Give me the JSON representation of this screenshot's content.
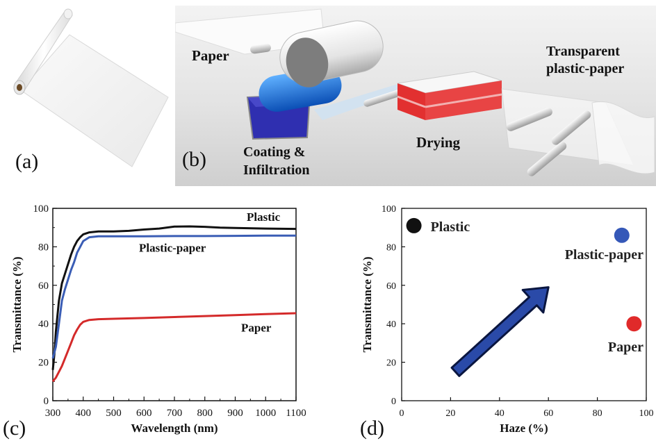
{
  "panel_a": {
    "label": "(a)"
  },
  "panel_b": {
    "label": "(b)",
    "paper": "Paper",
    "coating_line1": "Coating &",
    "coating_line2": "Infiltration",
    "drying": "Drying",
    "output_line1": "Transparent",
    "output_line2": "plastic-paper"
  },
  "chart_data": [
    {
      "panel_label": "(c)",
      "type": "line",
      "xlabel": "Wavelength (nm)",
      "ylabel": "Transmittance (%)",
      "xlim": [
        300,
        1100
      ],
      "ylim": [
        0,
        100
      ],
      "xticks": [
        300,
        400,
        500,
        600,
        700,
        800,
        900,
        1000,
        1100
      ],
      "yticks": [
        0,
        20,
        40,
        60,
        80,
        100
      ],
      "series": [
        {
          "name": "Plastic",
          "color": "#111111",
          "x": [
            300,
            305,
            310,
            320,
            330,
            340,
            350,
            360,
            370,
            380,
            390,
            400,
            420,
            450,
            500,
            550,
            600,
            650,
            700,
            750,
            800,
            850,
            900,
            1000,
            1100
          ],
          "y": [
            16,
            24,
            36,
            52,
            61,
            66,
            71,
            76,
            80,
            83,
            85,
            86.5,
            87.5,
            88,
            88,
            88.3,
            89,
            89.5,
            90.5,
            90.6,
            90.4,
            90,
            89.8,
            89.5,
            89.3
          ]
        },
        {
          "name": "Plastic-paper",
          "color": "#3a5db5",
          "x": [
            300,
            305,
            310,
            320,
            330,
            340,
            350,
            360,
            370,
            380,
            390,
            400,
            420,
            450,
            500,
            600,
            700,
            800,
            900,
            1000,
            1100
          ],
          "y": [
            22,
            25,
            28,
            40,
            52,
            58,
            63,
            68,
            72,
            77,
            80,
            83,
            85,
            85.5,
            85.5,
            85.5,
            85.6,
            85.6,
            85.7,
            85.8,
            85.8
          ]
        },
        {
          "name": "Paper",
          "color": "#d42a2a",
          "x": [
            300,
            305,
            310,
            320,
            330,
            340,
            350,
            360,
            370,
            380,
            390,
            400,
            420,
            450,
            500,
            600,
            700,
            800,
            900,
            1000,
            1100
          ],
          "y": [
            10,
            11,
            12,
            15,
            18,
            22,
            26,
            30,
            34,
            37,
            39.5,
            41,
            42,
            42.4,
            42.6,
            43,
            43.5,
            44,
            44.5,
            45,
            45.5
          ]
        }
      ]
    },
    {
      "panel_label": "(d)",
      "type": "scatter",
      "xlabel": "Haze (%)",
      "ylabel": "Transmittance (%)",
      "xlim": [
        0,
        100
      ],
      "ylim": [
        0,
        100
      ],
      "xticks": [
        0,
        20,
        40,
        60,
        80,
        100
      ],
      "yticks": [
        0,
        20,
        40,
        60,
        80,
        100
      ],
      "points": [
        {
          "label": "Plastic",
          "x": 5,
          "y": 91,
          "color": "#111111"
        },
        {
          "label": "Plastic-paper",
          "x": 90,
          "y": 86,
          "color": "#3558b8"
        },
        {
          "label": "Paper",
          "x": 95,
          "y": 40,
          "color": "#e02a2a"
        }
      ],
      "arrow": {
        "from": [
          22,
          15
        ],
        "to": [
          60,
          59
        ],
        "color": "#2a4aa8"
      }
    }
  ]
}
